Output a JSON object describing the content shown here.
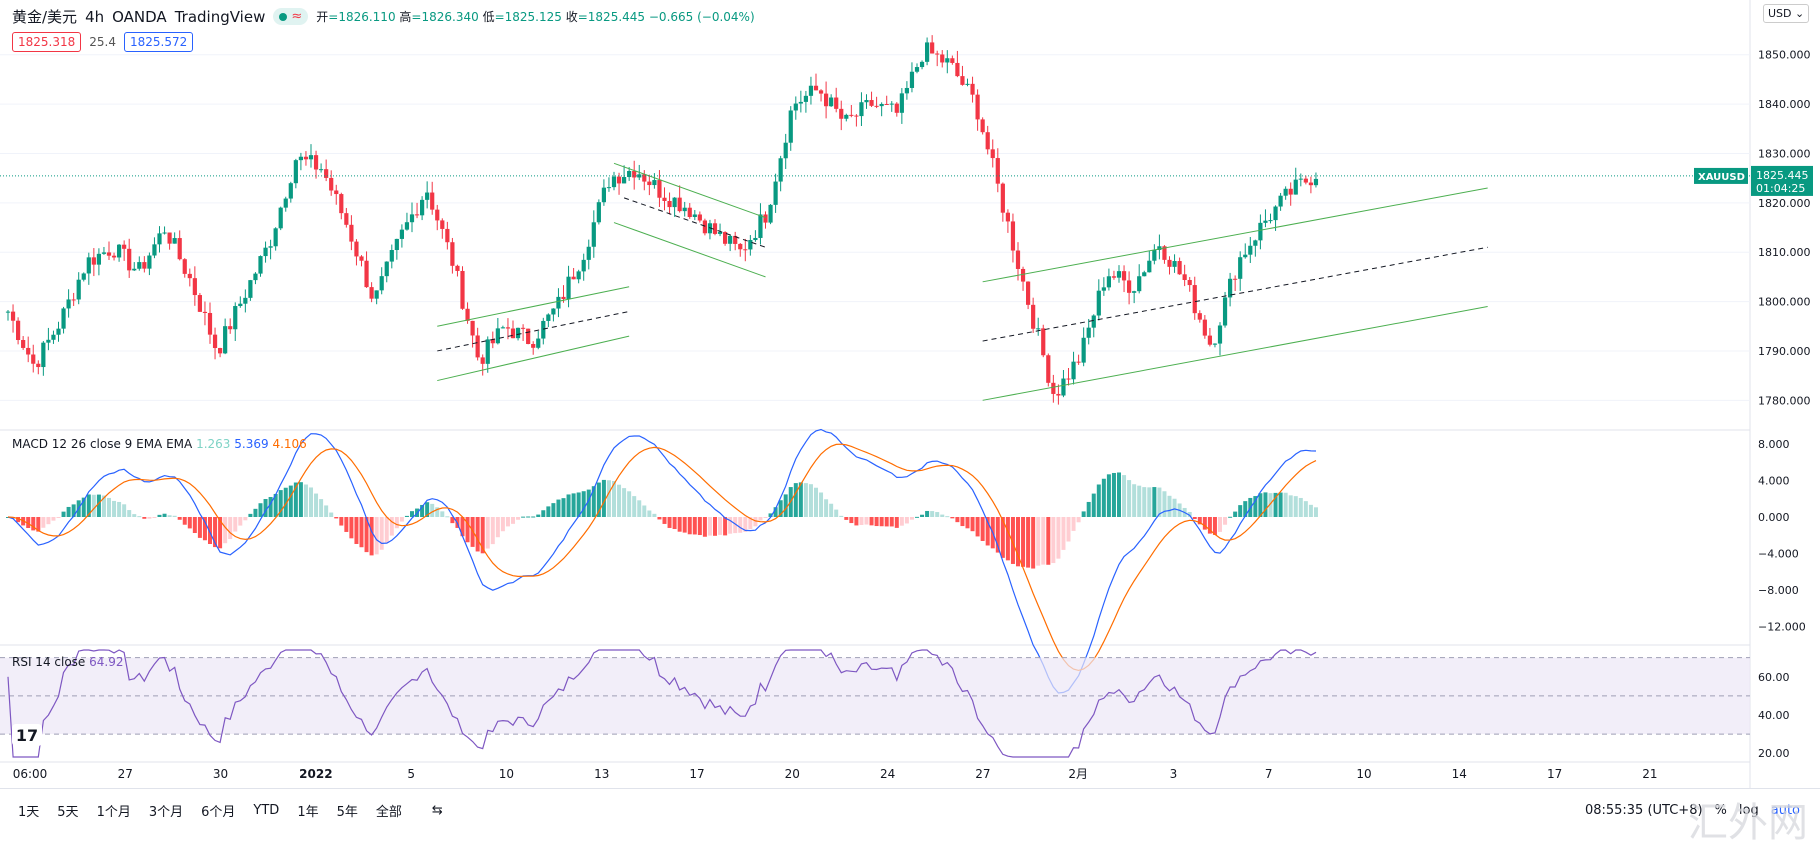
{
  "header": {
    "symbol": "黄金/美元",
    "interval": "4h",
    "broker": "OANDA",
    "platform": "TradingView",
    "ohlc": {
      "open_label": "开",
      "open": "=1826.110",
      "high_label": "高",
      "high": "=1826.340",
      "low_label": "低",
      "low": "=1825.125",
      "close_label": "收",
      "close": "=1825.445",
      "change": "−0.665 (−0.04%)"
    },
    "bid": "1825.318",
    "spread": "25.4",
    "ask": "1825.572",
    "currency": "USD"
  },
  "colors": {
    "up": "#089981",
    "down": "#f23645",
    "macd": "#2962ff",
    "signal": "#ff6d00",
    "rsi": "#7e57c2",
    "channel": "#4caf50"
  },
  "chart_data": [
    {
      "type": "candlestick",
      "title": "XAUUSD 4h",
      "symbol_label": "XAUUSD",
      "last_price": "1825.445",
      "countdown": "01:04:25",
      "ylim": [
        1775,
        1855
      ],
      "y_ticks": [
        "1850.000",
        "1840.000",
        "1830.000",
        "1820.000",
        "1810.000",
        "1800.000",
        "1790.000",
        "1780.000"
      ],
      "x_ticks": [
        "06:00",
        "27",
        "30",
        "2022",
        "5",
        "10",
        "13",
        "17",
        "20",
        "24",
        "27",
        "2月",
        "3",
        "7",
        "10",
        "14",
        "17",
        "21"
      ],
      "anchor_closes": [
        1798,
        1787,
        1796,
        1808,
        1811,
        1806,
        1815,
        1804,
        1790,
        1801,
        1812,
        1829,
        1827,
        1815,
        1800,
        1813,
        1823,
        1808,
        1788,
        1795,
        1792,
        1799,
        1810,
        1825,
        1827,
        1822,
        1819,
        1814,
        1810,
        1818,
        1840,
        1843,
        1836,
        1840,
        1838,
        1851,
        1848,
        1840,
        1820,
        1800,
        1781,
        1789,
        1806,
        1803,
        1812,
        1804,
        1791,
        1808,
        1816,
        1822,
        1826
      ],
      "channels": [
        {
          "name": "channel-1-upper",
          "p1": [
            0,
            1795
          ],
          "p2": [
            38,
            1803
          ]
        },
        {
          "name": "channel-1-lower",
          "p1": [
            0,
            1784
          ],
          "p2": [
            38,
            1793
          ]
        },
        {
          "name": "channel-1-mid",
          "p1": [
            0,
            1790
          ],
          "p2": [
            38,
            1798
          ],
          "dashed": true
        },
        {
          "name": "channel-2-upper",
          "p1": [
            58,
            1828
          ],
          "p2": [
            88,
            1817
          ]
        },
        {
          "name": "channel-2-lower",
          "p1": [
            58,
            1816
          ],
          "p2": [
            88,
            1805
          ]
        },
        {
          "name": "channel-2-mid",
          "p1": [
            60,
            1821
          ],
          "p2": [
            88,
            1811
          ],
          "dashed": true
        },
        {
          "name": "channel-3-upper",
          "p1": [
            165,
            1804
          ],
          "p2": [
            265,
            1823
          ]
        },
        {
          "name": "channel-3-lower",
          "p1": [
            165,
            1780
          ],
          "p2": [
            265,
            1799
          ]
        },
        {
          "name": "channel-3-mid",
          "p1": [
            165,
            1792
          ],
          "p2": [
            265,
            1811
          ],
          "dashed": true
        }
      ]
    },
    {
      "type": "line",
      "title": "MACD 12 26 close 9 EMA EMA",
      "values_label": {
        "hist": "1.263",
        "macd": "5.369",
        "signal": "4.106"
      },
      "ylim": [
        -13.5,
        9
      ],
      "y_ticks": [
        "8.000",
        "4.000",
        "0.000",
        "−4.000",
        "−8.000",
        "−12.000"
      ]
    },
    {
      "type": "line",
      "title": "RSI 14 close",
      "value_label": "64.92",
      "ylim": [
        18,
        74
      ],
      "bands": [
        70,
        50,
        30
      ],
      "y_ticks": [
        "60.00",
        "40.00",
        "20.00"
      ]
    }
  ],
  "bottom": {
    "ranges": [
      "1天",
      "5天",
      "1个月",
      "3个月",
      "6个月",
      "YTD",
      "1年",
      "5年",
      "全部"
    ],
    "time": "08:55:35 (UTC+8)",
    "percent": "%",
    "log": "log",
    "auto": "auto"
  },
  "watermark": "汇外网"
}
